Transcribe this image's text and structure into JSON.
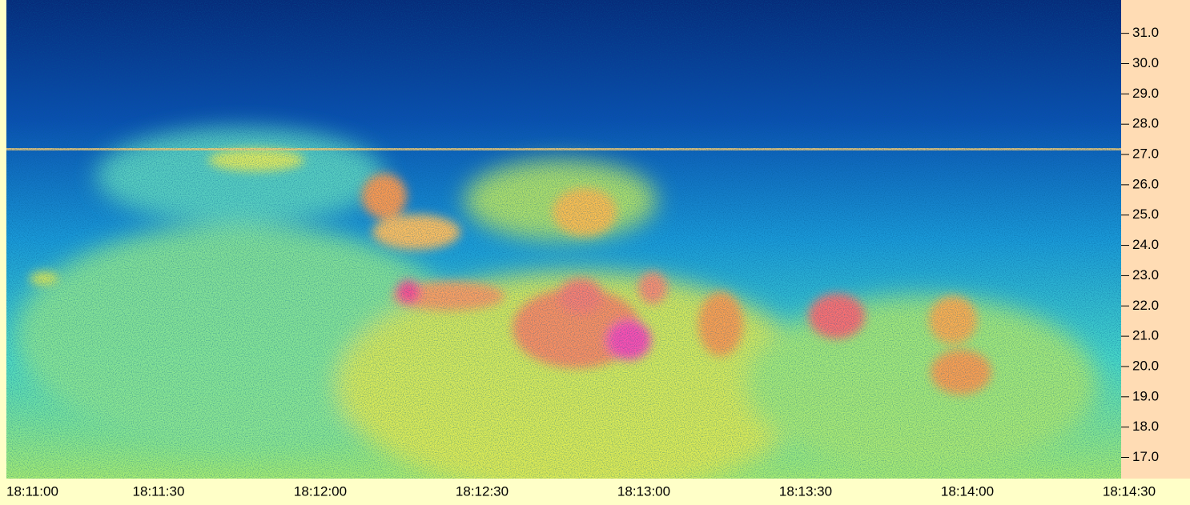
{
  "chart_data": {
    "type": "spectrogram",
    "ylim": [
      16.3,
      32.1
    ],
    "yticks": [
      {
        "value": 17,
        "label": "17.0"
      },
      {
        "value": 18,
        "label": "18.0"
      },
      {
        "value": 19,
        "label": "19.0"
      },
      {
        "value": 20,
        "label": "20.0"
      },
      {
        "value": 21,
        "label": "21.0"
      },
      {
        "value": 22,
        "label": "22.0"
      },
      {
        "value": 23,
        "label": "23.0"
      },
      {
        "value": 24,
        "label": "24.0"
      },
      {
        "value": 25,
        "label": "25.0"
      },
      {
        "value": 26,
        "label": "26.0"
      },
      {
        "value": 27,
        "label": "27.0"
      },
      {
        "value": 28,
        "label": "28.0"
      },
      {
        "value": 29,
        "label": "29.0"
      },
      {
        "value": 30,
        "label": "30.0"
      },
      {
        "value": 31,
        "label": "31.0"
      }
    ],
    "xticks": [
      "18:11:00",
      "18:11:30",
      "18:12:00",
      "18:12:30",
      "18:13:00",
      "18:13:30",
      "18:14:00",
      "18:14:30"
    ]
  }
}
